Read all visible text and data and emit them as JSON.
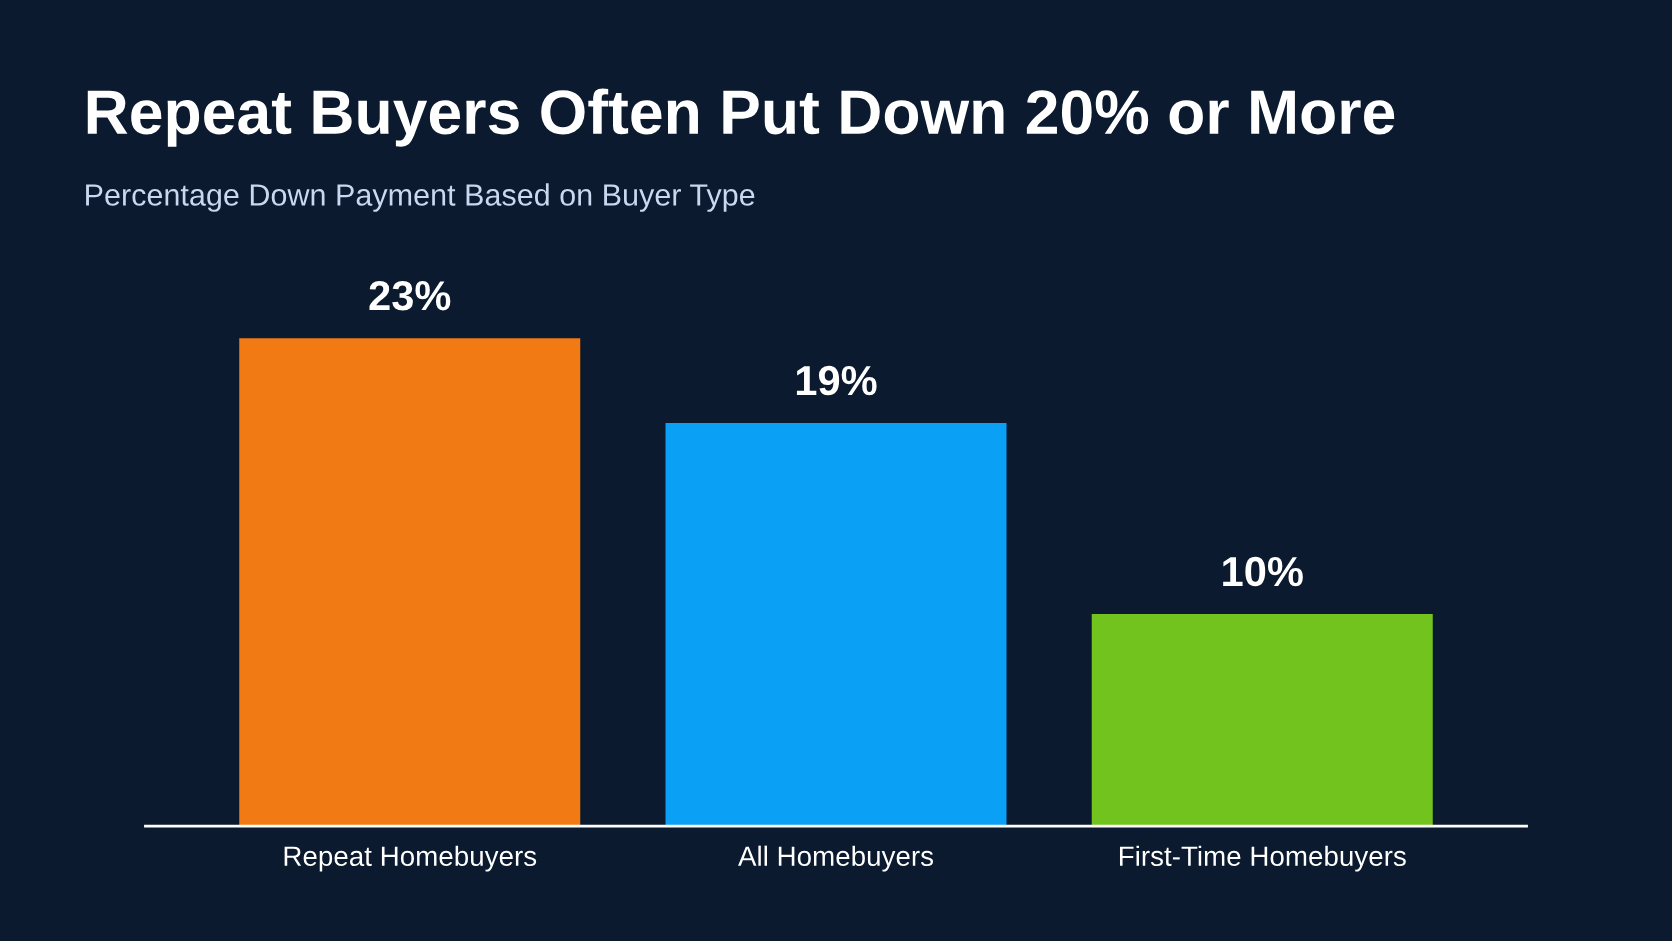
{
  "chart_data": {
    "type": "bar",
    "title": "Repeat Buyers Often Put Down 20% or More",
    "subtitle": "Percentage Down Payment Based on Buyer Type",
    "categories": [
      "Repeat Homebuyers",
      "All Homebuyers",
      "First-Time Homebuyers"
    ],
    "values": [
      23,
      19,
      10
    ],
    "colors": [
      "#f27a14",
      "#0aa0f5",
      "#72c31e"
    ],
    "value_labels": [
      "23%",
      "19%",
      "10%"
    ],
    "grid": false,
    "legend": false,
    "tick_labels": "x"
  }
}
